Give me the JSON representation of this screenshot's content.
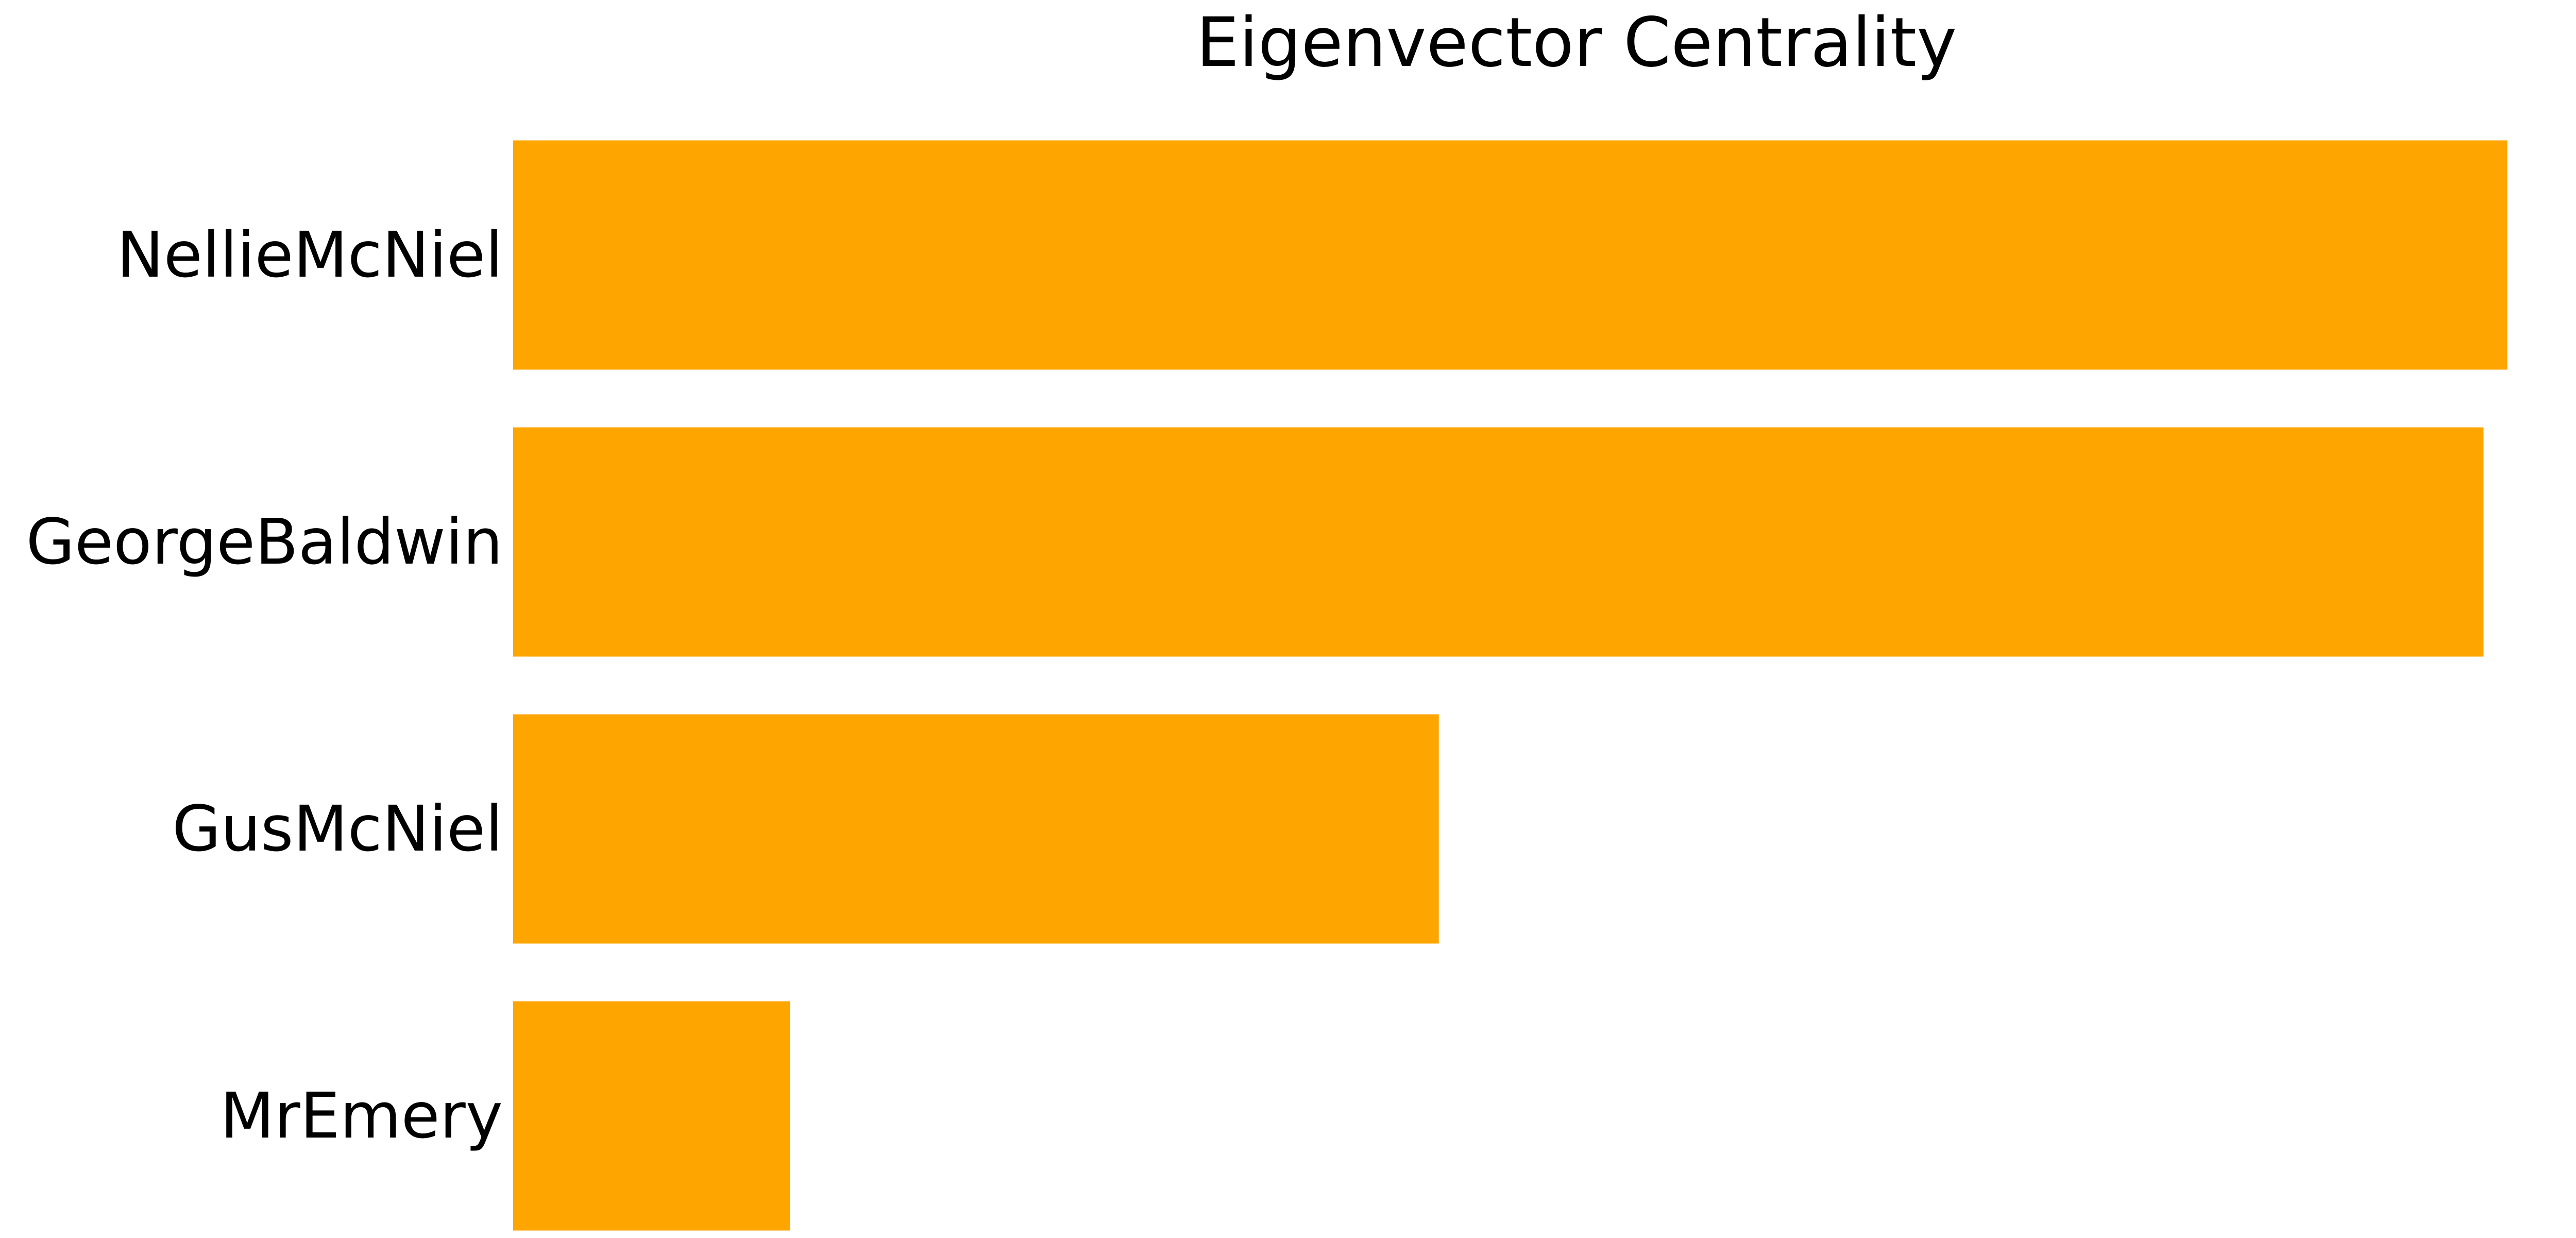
{
  "chart_data": {
    "type": "bar",
    "orientation": "horizontal",
    "title": "Eigenvector Centrality",
    "xlabel": "",
    "ylabel": "",
    "categories": [
      "NellieMcNiel",
      "GeorgeBaldwin",
      "GusMcNiel",
      "MrEmery"
    ],
    "values": [
      0.67,
      0.662,
      0.311,
      0.093
    ],
    "xlim": [
      0,
      0.7
    ],
    "grid": false,
    "axes_visible": false,
    "bar_color": "#FFA500"
  }
}
